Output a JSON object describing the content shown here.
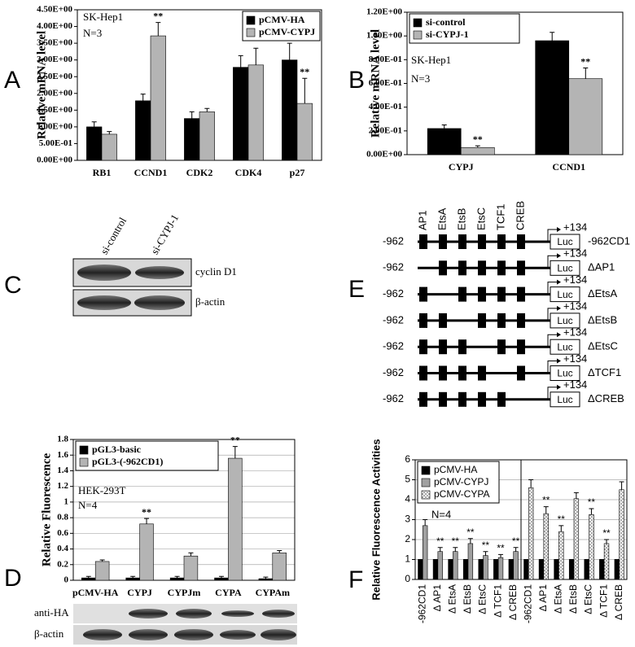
{
  "panel_labels": [
    "A",
    "B",
    "C",
    "D",
    "E",
    "F"
  ],
  "chart_data": [
    {
      "type": "bar",
      "y_label": "Relative mRNA level",
      "annotations": [
        "SK-Hep1",
        "N=3"
      ],
      "legend": "upper right",
      "grid": false,
      "categories": [
        "RB1",
        "CCND1",
        "CDK2",
        "CDK4",
        "p27"
      ],
      "ylim": [
        0,
        4.5
      ],
      "yticks": [
        {
          "value": 0,
          "label": "0.00E+00"
        },
        {
          "value": 0.5,
          "label": "5.00E-01"
        },
        {
          "value": 1,
          "label": "1.00E+00"
        },
        {
          "value": 1.5,
          "label": "1.50E+00"
        },
        {
          "value": 2,
          "label": "2.00E+00"
        },
        {
          "value": 2.5,
          "label": "2.50E+00"
        },
        {
          "value": 3,
          "label": "3.00E+00"
        },
        {
          "value": 3.5,
          "label": "3.50E+00"
        },
        {
          "value": 4,
          "label": "4.00E+00"
        },
        {
          "value": 4.5,
          "label": "4.50E+00"
        }
      ],
      "series": [
        {
          "name": "pCMV-HA",
          "color": "#000000",
          "values": [
            1.0,
            1.78,
            1.25,
            2.78,
            3.0
          ],
          "errors": [
            0.15,
            0.2,
            0.2,
            0.35,
            0.5
          ],
          "significance": [
            null,
            null,
            null,
            null,
            null
          ]
        },
        {
          "name": "pCMV-CYPJ",
          "color": "#b4b4b4",
          "values": [
            0.78,
            3.72,
            1.45,
            2.85,
            1.7
          ],
          "errors": [
            0.08,
            0.4,
            0.1,
            0.5,
            0.75
          ],
          "significance": [
            null,
            "**",
            null,
            null,
            "**"
          ]
        }
      ]
    },
    {
      "type": "bar",
      "y_label": "Relative mRNA level",
      "annotations": [
        "SK-Hep1",
        "N=3"
      ],
      "legend": "upper left",
      "grid": false,
      "categories": [
        "CYPJ",
        "CCND1"
      ],
      "ylim": [
        0,
        1.2
      ],
      "yticks": [
        {
          "value": 0,
          "label": "0.00E+00"
        },
        {
          "value": 0.2,
          "label": "2.00E-01"
        },
        {
          "value": 0.4,
          "label": "4.00E-01"
        },
        {
          "value": 0.6,
          "label": "6.00E-01"
        },
        {
          "value": 0.8,
          "label": "8.00E-01"
        },
        {
          "value": 1,
          "label": "1.00E+00"
        },
        {
          "value": 1.2,
          "label": "1.20E+00"
        }
      ],
      "series": [
        {
          "name": "si-control",
          "color": "#000000",
          "values": [
            0.22,
            0.96
          ],
          "errors": [
            0.03,
            0.07
          ],
          "significance": [
            null,
            null
          ]
        },
        {
          "name": "si-CYPJ-1",
          "color": "#b4b4b4",
          "values": [
            0.06,
            0.64
          ],
          "errors": [
            0.015,
            0.09
          ],
          "significance": [
            "**",
            "**"
          ]
        }
      ]
    },
    {
      "type": "bar",
      "y_label": "Relative Fluorescence",
      "annotations": [
        "HEK-293T",
        "N=4"
      ],
      "legend": "upper left",
      "grid": true,
      "categories": [
        "pCMV-HA",
        "CYPJ",
        "CYPJm",
        "CYPA",
        "CYPAm"
      ],
      "ylim": [
        0,
        1.8
      ],
      "yticks": [
        0,
        0.2,
        0.4,
        0.6,
        0.8,
        1,
        1.2,
        1.4,
        1.6,
        1.8
      ],
      "series": [
        {
          "name": "pGL3-basic",
          "color": "#000000",
          "values": [
            0.03,
            0.03,
            0.03,
            0.03,
            0.02
          ],
          "errors": [
            0.02,
            0.02,
            0.02,
            0.02,
            0.02
          ],
          "significance": [
            null,
            null,
            null,
            null,
            null
          ]
        },
        {
          "name": "pGL3-(-962CD1)",
          "color": "#b4b4b4",
          "values": [
            0.24,
            0.72,
            0.31,
            1.56,
            0.35
          ],
          "errors": [
            0.02,
            0.07,
            0.04,
            0.15,
            0.03
          ],
          "significance": [
            null,
            "**",
            null,
            "**",
            null
          ]
        }
      ]
    },
    {
      "type": "bar",
      "y_label": "Relative Fluorescence Activities",
      "annotations": [
        "N=4"
      ],
      "legend": "upper left",
      "grid": true,
      "categories": [
        "-962CD1",
        "Δ AP1",
        "Δ EtsA",
        "Δ EtsB",
        "Δ EtsC",
        "Δ TCF1",
        "Δ CREB",
        "-962CD1",
        "Δ AP1",
        "Δ EtsA",
        "Δ EtsB",
        "Δ EtsC",
        "Δ TCF1",
        "Δ CREB"
      ],
      "ylim": [
        0,
        6
      ],
      "yticks": [
        0,
        1,
        2,
        3,
        4,
        5,
        6
      ],
      "series": [
        {
          "name": "pCMV-HA",
          "color": "#000000",
          "values": [
            1,
            1,
            1,
            1,
            1,
            1,
            1,
            1,
            1,
            1,
            1,
            1,
            1,
            1
          ],
          "errors": [
            0,
            0,
            0,
            0,
            0,
            0,
            0,
            0,
            0,
            0,
            0,
            0,
            0,
            0
          ],
          "significance": [
            null,
            null,
            null,
            null,
            null,
            null,
            null,
            null,
            null,
            null,
            null,
            null,
            null,
            null
          ]
        },
        {
          "name": "pCMV-CYPJ",
          "color": "#a0a0a0",
          "values": [
            2.7,
            1.4,
            1.4,
            1.8,
            1.2,
            1.1,
            1.4,
            null,
            null,
            null,
            null,
            null,
            null,
            null
          ],
          "errors": [
            0.3,
            0.2,
            0.2,
            0.25,
            0.2,
            0.15,
            0.2,
            null,
            null,
            null,
            null,
            null,
            null,
            null
          ],
          "significance": [
            null,
            "**",
            "**",
            "**",
            "**",
            "**",
            "**",
            null,
            null,
            null,
            null,
            null,
            null,
            null
          ]
        },
        {
          "name": "pCMV-CYPA",
          "color": "#e6e6e6",
          "pattern": "dots",
          "values": [
            null,
            null,
            null,
            null,
            null,
            null,
            null,
            4.6,
            3.3,
            2.4,
            4.05,
            3.25,
            1.8,
            4.5
          ],
          "errors": [
            null,
            null,
            null,
            null,
            null,
            null,
            null,
            0.4,
            0.35,
            0.3,
            0.3,
            0.3,
            0.2,
            0.4
          ],
          "significance": [
            null,
            null,
            null,
            null,
            null,
            null,
            null,
            null,
            "**",
            "**",
            null,
            "**",
            "**",
            null
          ]
        }
      ]
    }
  ],
  "blot_c": {
    "columns": [
      "si-control",
      "si-CYPJ-1"
    ],
    "rows": [
      "cyclin D1",
      "β-actin"
    ]
  },
  "blot_d": {
    "rows": [
      "anti-HA",
      "β-actin"
    ]
  },
  "diagram_e": {
    "sites": [
      "AP1",
      "EtsA",
      "EtsB",
      "EtsC",
      "TCF1",
      "CREB"
    ],
    "constructs": [
      {
        "start": "-962",
        "tss": "+134",
        "reporter": "Luc",
        "name": "-962CD1"
      },
      {
        "start": "-962",
        "tss": "+134",
        "reporter": "Luc",
        "name": "ΔAP1"
      },
      {
        "start": "-962",
        "tss": "+134",
        "reporter": "Luc",
        "name": "ΔEtsA"
      },
      {
        "start": "-962",
        "tss": "+134",
        "reporter": "Luc",
        "name": "ΔEtsB"
      },
      {
        "start": "-962",
        "tss": "+134",
        "reporter": "Luc",
        "name": "ΔEtsC"
      },
      {
        "start": "-962",
        "tss": "+134",
        "reporter": "Luc",
        "name": "ΔTCF1"
      },
      {
        "start": "-962",
        "tss": "+134",
        "reporter": "Luc",
        "name": "ΔCREB"
      }
    ]
  }
}
